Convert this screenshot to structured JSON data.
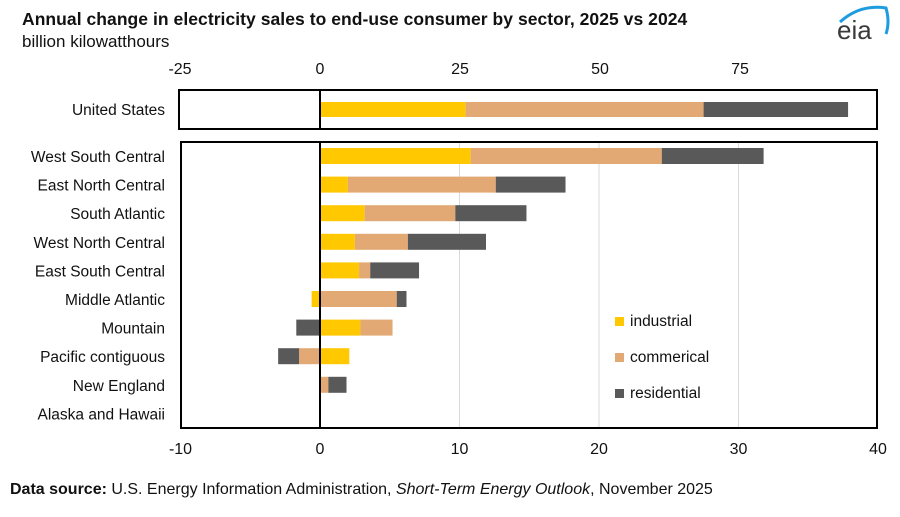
{
  "header": {
    "title": "Annual change in electricity sales to end-use consumer by sector, 2025 vs 2024",
    "subtitle": "billion kilowatthours",
    "logo_text": "eia"
  },
  "footer": {
    "source_label": "Data source:",
    "source_text": " U.S. Energy Information Administration, ",
    "source_publication": "Short-Term Energy Outlook",
    "source_date": ", November 2025"
  },
  "colors": {
    "industrial": "#FFC800",
    "commercial": "#E2A975",
    "residential": "#595959",
    "logo_arc": "#1E9CE0",
    "logo_text": "#3a3a3a"
  },
  "chart_data": [
    {
      "type": "bar",
      "orientation": "horizontal",
      "stacked": true,
      "panel": "national",
      "categories": [
        "United States"
      ],
      "series": [
        {
          "name": "industrial",
          "values": [
            26.0
          ]
        },
        {
          "name": "commerical",
          "values": [
            42.5
          ]
        },
        {
          "name": "residential",
          "values": [
            25.8
          ]
        }
      ],
      "xlim": [
        -25,
        100
      ],
      "xticks": [
        -25,
        0,
        25,
        50,
        75
      ],
      "xaxis_position": "top",
      "grid": false
    },
    {
      "type": "bar",
      "orientation": "horizontal",
      "stacked": true,
      "panel": "regional",
      "categories": [
        "West South Central",
        "East North Central",
        "South Atlantic",
        "West North Central",
        "East South Central",
        "Middle Atlantic",
        "Mountain",
        "Pacific contiguous",
        "New England",
        "Alaska and Hawaii"
      ],
      "series": [
        {
          "name": "industrial",
          "values": [
            10.8,
            2.0,
            3.2,
            2.5,
            2.8,
            -0.6,
            2.9,
            2.1,
            0.0,
            0.0
          ]
        },
        {
          "name": "commerical",
          "values": [
            13.7,
            10.6,
            6.5,
            3.8,
            0.8,
            5.5,
            2.3,
            -1.5,
            0.6,
            0.0
          ]
        },
        {
          "name": "residential",
          "values": [
            7.3,
            5.0,
            5.1,
            5.6,
            3.5,
            0.7,
            -1.7,
            -1.5,
            1.3,
            0.0
          ]
        }
      ],
      "xlim": [
        -10,
        40
      ],
      "xticks": [
        -10,
        0,
        10,
        20,
        30,
        40
      ],
      "xaxis_position": "bottom",
      "grid": true,
      "legend": {
        "position": "right",
        "entries": [
          "industrial",
          "commerical",
          "residential"
        ]
      }
    }
  ]
}
